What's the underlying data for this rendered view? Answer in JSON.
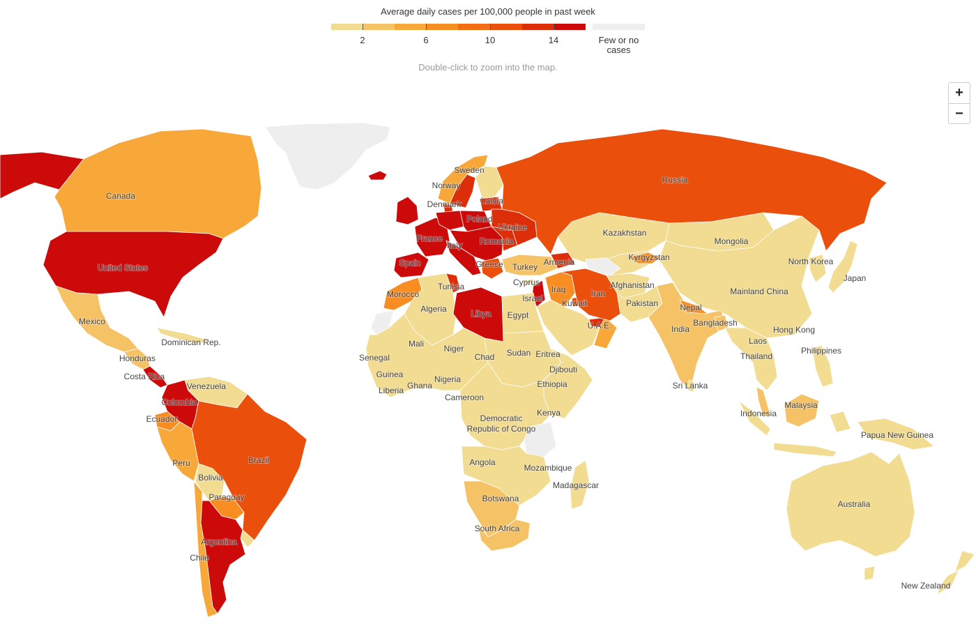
{
  "legend": {
    "title": "Average daily cases per 100,000 people in past week",
    "scale_colors": [
      "#f2dc92",
      "#f5c266",
      "#f7a838",
      "#f88d22",
      "#f36d12",
      "#ea4f0b",
      "#dc2e08",
      "#cc0a0a"
    ],
    "tick_values": [
      "2",
      "6",
      "10",
      "14"
    ],
    "few_cases_color": "#eeeeee",
    "few_cases_label": "Few or no cases"
  },
  "hint": "Double-click to zoom into the map.",
  "zoom": {
    "in_label": "+",
    "out_label": "−"
  },
  "land_colors": {
    "none": "#eeeeee",
    "c1": "#f2dc92",
    "c2": "#f5c266",
    "c3": "#f7a838",
    "c4": "#f88d22",
    "c5": "#ea4f0b",
    "c6": "#dc2e08",
    "c7": "#cc0a0a"
  },
  "countries": [
    {
      "name": "Canada",
      "level": "c3"
    },
    {
      "name": "United States",
      "level": "c7"
    },
    {
      "name": "Mexico",
      "level": "c2"
    },
    {
      "name": "Dominican Rep.",
      "level": "c1"
    },
    {
      "name": "Honduras",
      "level": "c2"
    },
    {
      "name": "Costa Rica",
      "level": "c7"
    },
    {
      "name": "Venezuela",
      "level": "c1"
    },
    {
      "name": "Colombia",
      "level": "c7"
    },
    {
      "name": "Ecuador",
      "level": "c4"
    },
    {
      "name": "Peru",
      "level": "c3"
    },
    {
      "name": "Brazil",
      "level": "c5"
    },
    {
      "name": "Bolivia",
      "level": "c1"
    },
    {
      "name": "Paraguay",
      "level": "c4"
    },
    {
      "name": "Argentina",
      "level": "c7"
    },
    {
      "name": "Chile",
      "level": "c3"
    },
    {
      "name": "Sweden",
      "level": "c6"
    },
    {
      "name": "Norway",
      "level": "c3"
    },
    {
      "name": "Denmark",
      "level": "c6"
    },
    {
      "name": "Latvia",
      "level": "c6"
    },
    {
      "name": "Poland",
      "level": "c7"
    },
    {
      "name": "Ukraine",
      "level": "c6"
    },
    {
      "name": "France",
      "level": "c7"
    },
    {
      "name": "Italy",
      "level": "c7"
    },
    {
      "name": "Romania",
      "level": "c7"
    },
    {
      "name": "Greece",
      "level": "c5"
    },
    {
      "name": "Spain",
      "level": "c7"
    },
    {
      "name": "Turkey",
      "level": "c2"
    },
    {
      "name": "Armenia",
      "level": "c6"
    },
    {
      "name": "Cyprus",
      "level": "c1"
    },
    {
      "name": "Morocco",
      "level": "c4"
    },
    {
      "name": "Tunisia",
      "level": "c6"
    },
    {
      "name": "Algeria",
      "level": "c1"
    },
    {
      "name": "Libya",
      "level": "c7"
    },
    {
      "name": "Egypt",
      "level": "c1"
    },
    {
      "name": "Israel",
      "level": "c7"
    },
    {
      "name": "Iraq",
      "level": "c4"
    },
    {
      "name": "Kuwait",
      "level": "c5"
    },
    {
      "name": "Iran",
      "level": "c5"
    },
    {
      "name": "U.A.E.",
      "level": "c6"
    },
    {
      "name": "Russia",
      "level": "c5"
    },
    {
      "name": "Kazakhstan",
      "level": "c1"
    },
    {
      "name": "Kyrgyzstan",
      "level": "c4"
    },
    {
      "name": "Afghanistan",
      "level": "c1"
    },
    {
      "name": "Pakistan",
      "level": "c1"
    },
    {
      "name": "Mongolia",
      "level": "c1"
    },
    {
      "name": "North Korea",
      "level": "c1"
    },
    {
      "name": "Japan",
      "level": "c1"
    },
    {
      "name": "Mainland China",
      "level": "c1"
    },
    {
      "name": "Nepal",
      "level": "c4"
    },
    {
      "name": "India",
      "level": "c2"
    },
    {
      "name": "Bangladesh",
      "level": "c2"
    },
    {
      "name": "Hong Kong",
      "level": "c1"
    },
    {
      "name": "Laos",
      "level": "c1"
    },
    {
      "name": "Thailand",
      "level": "c1"
    },
    {
      "name": "Philippines",
      "level": "c1"
    },
    {
      "name": "Sri Lanka",
      "level": "c1"
    },
    {
      "name": "Malaysia",
      "level": "c2"
    },
    {
      "name": "Indonesia",
      "level": "c1"
    },
    {
      "name": "Papua New Guinea",
      "level": "c1"
    },
    {
      "name": "Australia",
      "level": "c1"
    },
    {
      "name": "New Zealand",
      "level": "c1"
    },
    {
      "name": "Senegal",
      "level": "c1"
    },
    {
      "name": "Mali",
      "level": "c1"
    },
    {
      "name": "Niger",
      "level": "c1"
    },
    {
      "name": "Chad",
      "level": "c1"
    },
    {
      "name": "Sudan",
      "level": "c1"
    },
    {
      "name": "Eritrea",
      "level": "c1"
    },
    {
      "name": "Djibouti",
      "level": "c1"
    },
    {
      "name": "Guinea",
      "level": "c1"
    },
    {
      "name": "Liberia",
      "level": "c1"
    },
    {
      "name": "Ghana",
      "level": "c1"
    },
    {
      "name": "Nigeria",
      "level": "c1"
    },
    {
      "name": "Ethiopia",
      "level": "c1"
    },
    {
      "name": "Cameroon",
      "level": "c1"
    },
    {
      "name": "Democratic Republic of Congo",
      "level": "c1"
    },
    {
      "name": "Kenya",
      "level": "c1"
    },
    {
      "name": "Angola",
      "level": "c1"
    },
    {
      "name": "Mozambique",
      "level": "c1"
    },
    {
      "name": "Madagascar",
      "level": "c1"
    },
    {
      "name": "Botswana",
      "level": "c2"
    },
    {
      "name": "South Africa",
      "level": "c2"
    },
    {
      "name": "Greenland",
      "level": "none"
    },
    {
      "name": "Tanzania",
      "level": "none"
    },
    {
      "name": "Western Sahara",
      "level": "none"
    },
    {
      "name": "Turkmenistan",
      "level": "none"
    }
  ]
}
